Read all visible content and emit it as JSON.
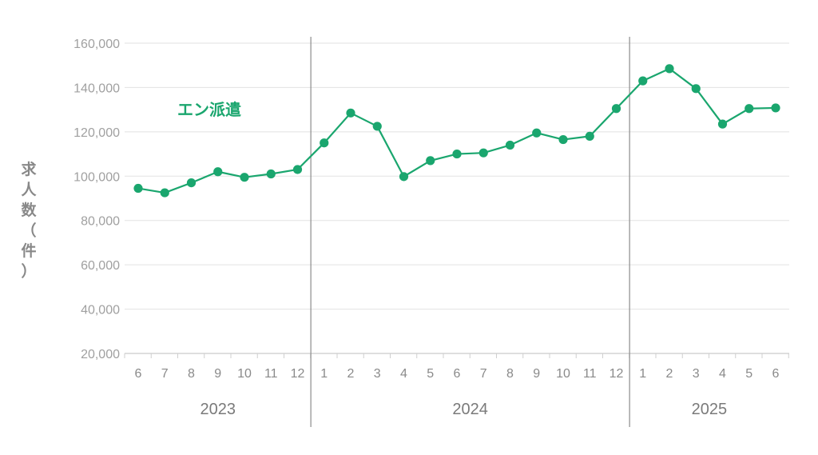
{
  "chart_data": {
    "type": "line",
    "ylabel": "求人数（件）",
    "ylim": [
      20000,
      160000
    ],
    "yticks": [
      20000,
      40000,
      60000,
      80000,
      100000,
      120000,
      140000,
      160000
    ],
    "ytick_labels": [
      "20,000",
      "40,000",
      "60,000",
      "80,000",
      "100,000",
      "120,000",
      "140,000",
      "160,000"
    ],
    "grid": "horizontal",
    "categories": [
      "6",
      "7",
      "8",
      "9",
      "10",
      "11",
      "12",
      "1",
      "2",
      "3",
      "4",
      "5",
      "6",
      "7",
      "8",
      "9",
      "10",
      "11",
      "12",
      "1",
      "2",
      "3",
      "4",
      "5",
      "6"
    ],
    "year_groups": [
      {
        "label": "2023",
        "start": 0,
        "end": 6
      },
      {
        "label": "2024",
        "start": 7,
        "end": 18
      },
      {
        "label": "2025",
        "start": 19,
        "end": 24
      }
    ],
    "series": [
      {
        "name": "エン派遣",
        "color": "#1aa66e",
        "values": [
          94500,
          92500,
          97000,
          102000,
          99500,
          101000,
          103000,
          115000,
          128500,
          122500,
          99800,
          107000,
          110000,
          110500,
          114000,
          119500,
          116500,
          118000,
          130500,
          143000,
          148500,
          139500,
          123500,
          130500,
          130800
        ]
      }
    ]
  }
}
